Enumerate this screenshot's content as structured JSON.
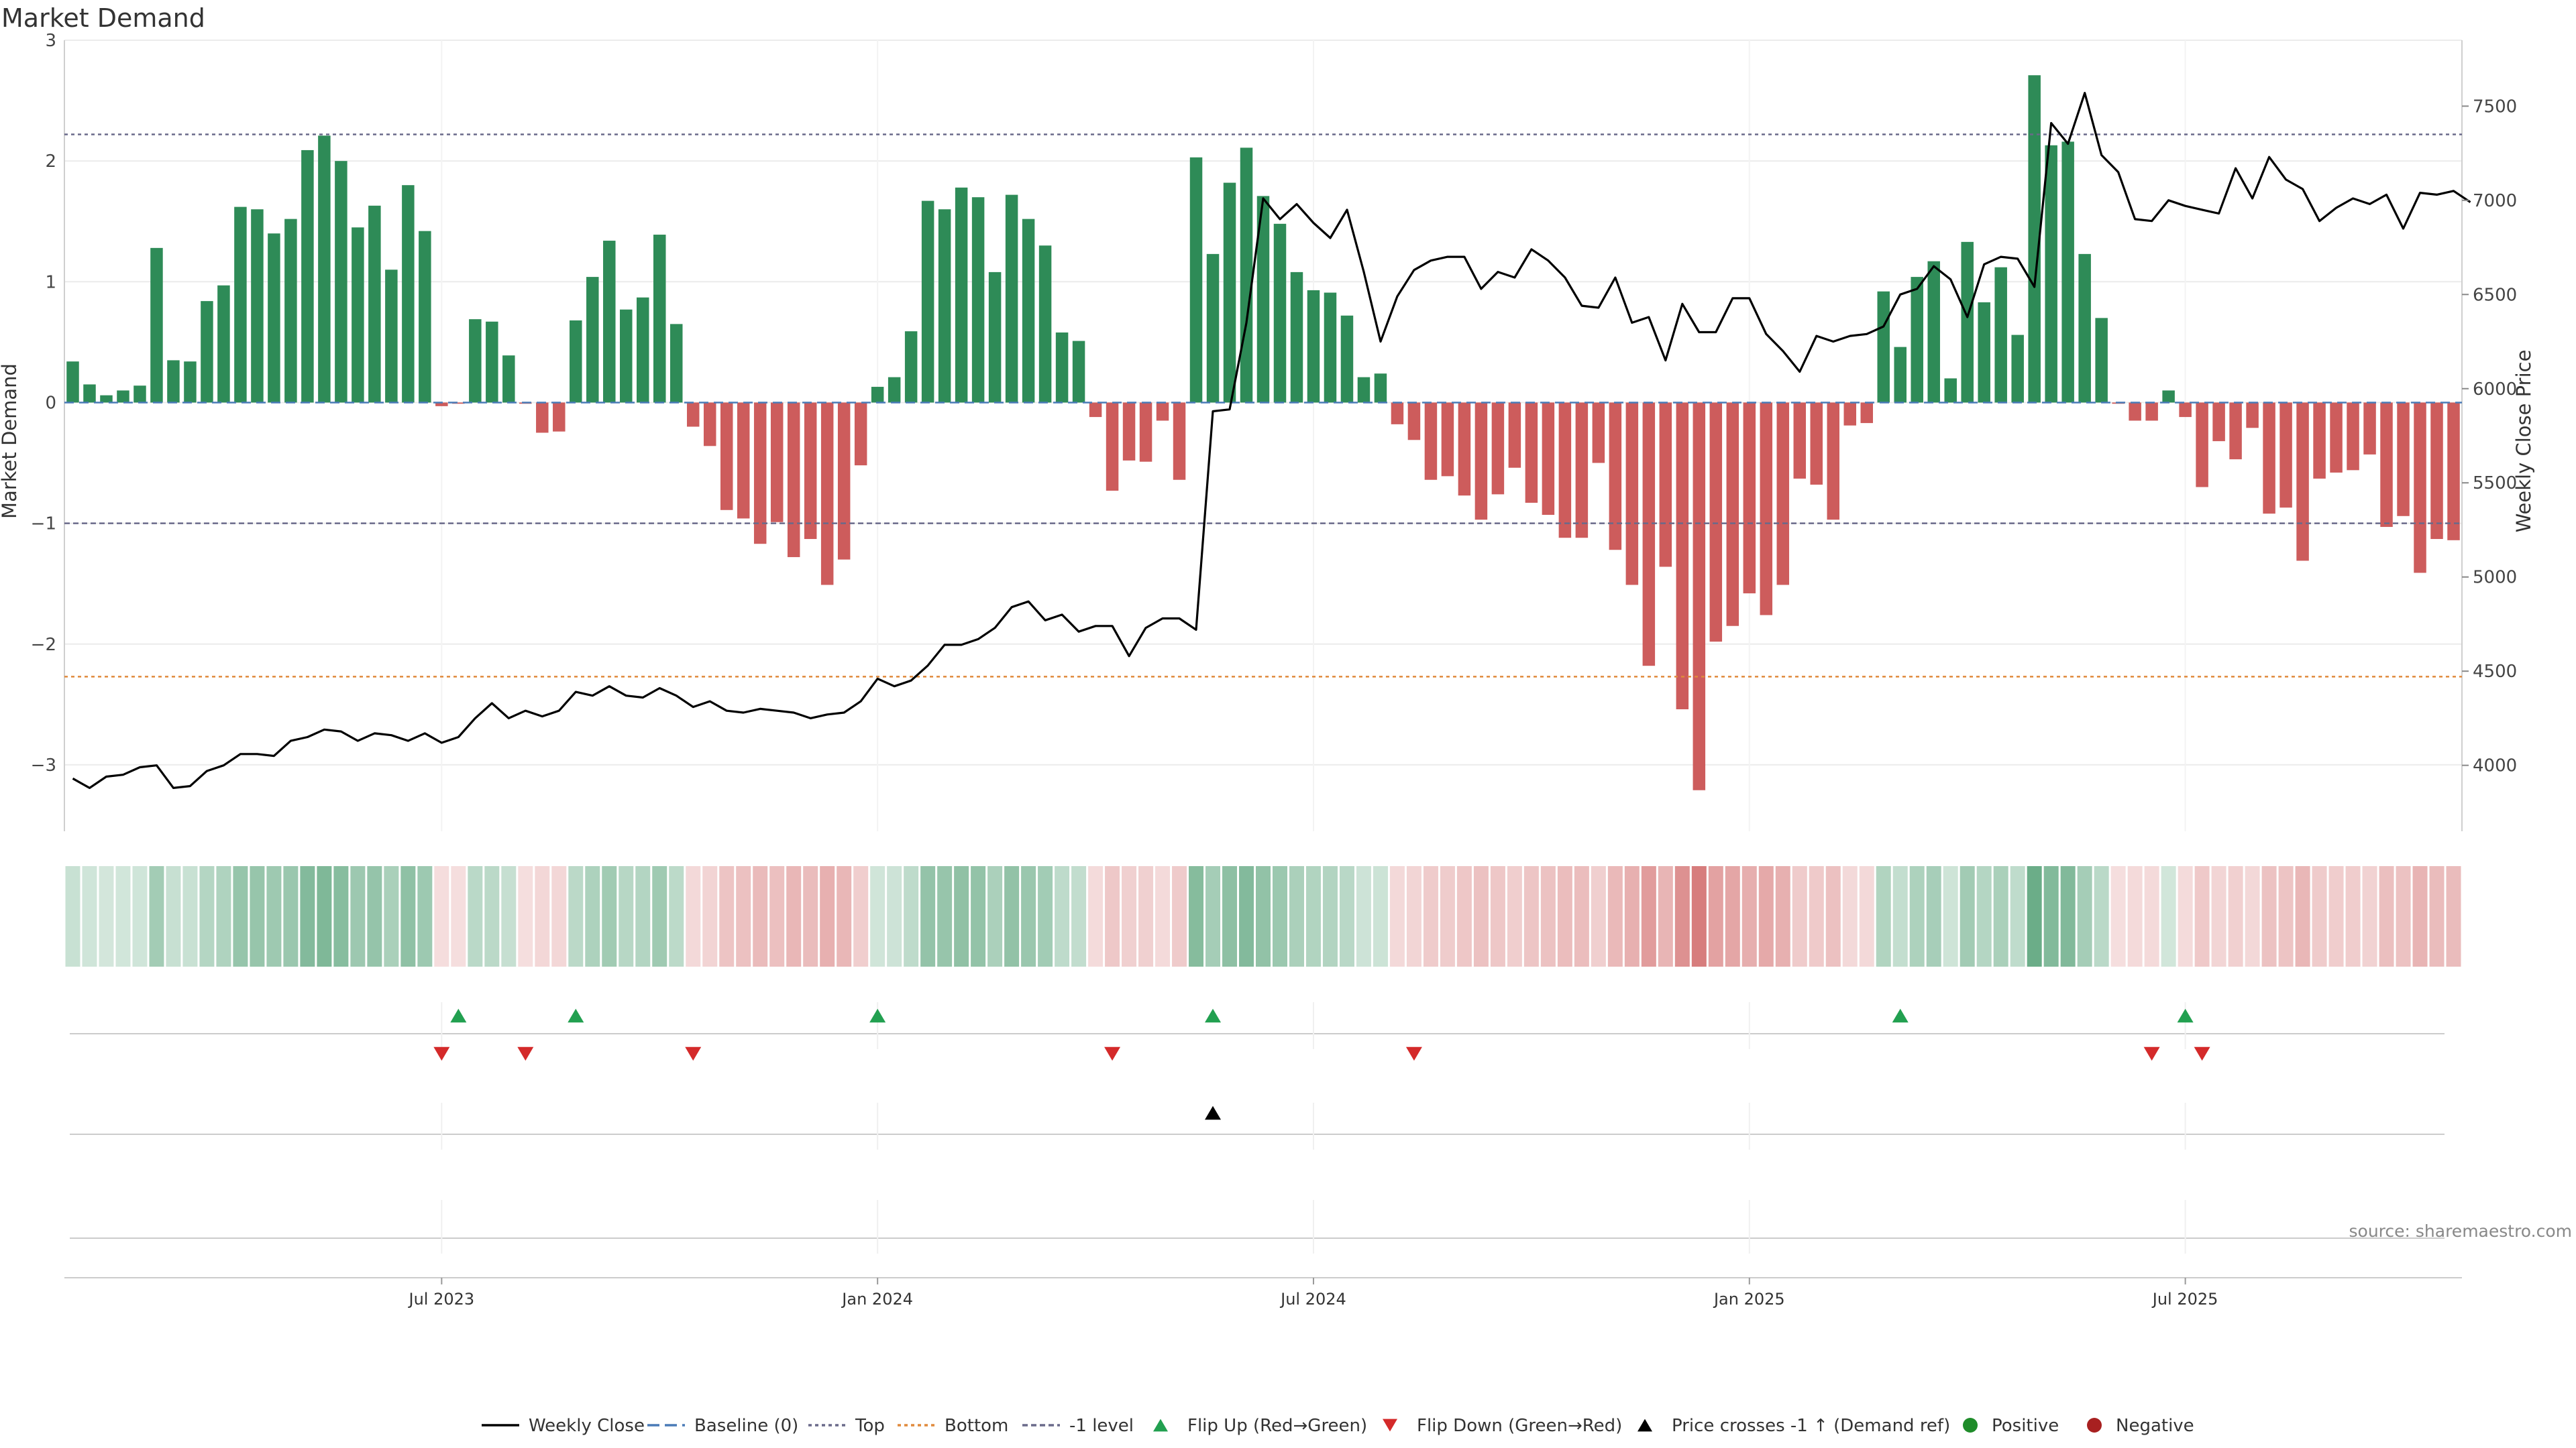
{
  "chart_data": {
    "type": "bar",
    "title": "Market Demand",
    "ylabel": "Market Demand",
    "y2label": "Weekly Close Price",
    "ylim": [
      -3.55,
      3.0
    ],
    "y2lim": [
      3650,
      7850
    ],
    "yticks": [
      3,
      2,
      1,
      0,
      -1,
      -2,
      -3
    ],
    "y2ticks": [
      7500,
      7000,
      6500,
      6000,
      5500,
      5000,
      4500,
      4000
    ],
    "x_tick_labels": [
      {
        "label": "Jul 2023",
        "week": 22
      },
      {
        "label": "Jan 2024",
        "week": 48
      },
      {
        "label": "Jul 2024",
        "week": 74
      },
      {
        "label": "Jan 2025",
        "week": 100
      },
      {
        "label": "Jul 2025",
        "week": 126
      }
    ],
    "reference_lines": {
      "top": 2.22,
      "bottom": -2.27,
      "minus_one": -1.0,
      "baseline": 0
    },
    "series": [
      {
        "name": "Market Demand",
        "kind": "bar",
        "values": [
          0.34,
          0.15,
          0.06,
          0.1,
          0.14,
          1.28,
          0.35,
          0.34,
          0.84,
          0.97,
          1.62,
          1.6,
          1.4,
          1.52,
          2.09,
          2.21,
          2.0,
          1.45,
          1.63,
          1.1,
          1.8,
          1.42,
          -0.03,
          -0.01,
          0.69,
          0.67,
          0.39,
          -0.01,
          -0.25,
          -0.24,
          0.68,
          1.04,
          1.34,
          0.77,
          0.87,
          1.39,
          0.65,
          -0.2,
          -0.36,
          -0.89,
          -0.96,
          -1.17,
          -0.99,
          -1.28,
          -1.13,
          -1.51,
          -1.3,
          -0.52,
          0.13,
          0.21,
          0.59,
          1.67,
          1.6,
          1.78,
          1.7,
          1.08,
          1.72,
          1.52,
          1.3,
          0.58,
          0.51,
          -0.12,
          -0.73,
          -0.48,
          -0.49,
          -0.15,
          -0.64,
          2.03,
          1.23,
          1.82,
          2.11,
          1.71,
          1.48,
          1.08,
          0.93,
          0.91,
          0.72,
          0.21,
          0.24,
          -0.18,
          -0.31,
          -0.64,
          -0.61,
          -0.77,
          -0.97,
          -0.76,
          -0.54,
          -0.83,
          -0.93,
          -1.12,
          -1.12,
          -0.5,
          -1.22,
          -1.51,
          -2.18,
          -1.36,
          -2.54,
          -3.21,
          -1.98,
          -1.85,
          -1.58,
          -1.76,
          -1.51,
          -0.63,
          -0.68,
          -0.97,
          -0.19,
          -0.17,
          0.92,
          0.46,
          1.04,
          1.17,
          0.2,
          1.33,
          0.83,
          1.12,
          0.56,
          2.71,
          2.13,
          2.16,
          1.23,
          0.7,
          -0.01,
          -0.15,
          -0.15,
          0.1,
          -0.12,
          -0.7,
          -0.32,
          -0.47,
          -0.21,
          -0.92,
          -0.87,
          -1.31,
          -0.63,
          -0.58,
          -0.56,
          -0.43,
          -1.03,
          -0.94,
          -1.41,
          -1.13,
          -1.14
        ]
      },
      {
        "name": "Weekly Close",
        "kind": "line",
        "axis": "right",
        "values": [
          3930,
          3880,
          3940,
          3950,
          3990,
          4000,
          3880,
          3890,
          3970,
          4000,
          4060,
          4060,
          4050,
          4130,
          4150,
          4190,
          4180,
          4130,
          4170,
          4160,
          4130,
          4170,
          4120,
          4150,
          4250,
          4330,
          4250,
          4290,
          4260,
          4290,
          4390,
          4370,
          4420,
          4370,
          4360,
          4410,
          4370,
          4310,
          4340,
          4290,
          4280,
          4300,
          4290,
          4280,
          4250,
          4270,
          4280,
          4340,
          4460,
          4420,
          4450,
          4530,
          4640,
          4640,
          4670,
          4730,
          4840,
          4870,
          4770,
          4800,
          4710,
          4740,
          4740,
          4580,
          4730,
          4780,
          4780,
          4720,
          5880,
          5890,
          6350,
          7010,
          6900,
          6980,
          6880,
          6800,
          6950,
          6620,
          6250,
          6490,
          6630,
          6680,
          6700,
          6700,
          6530,
          6620,
          6590,
          6740,
          6680,
          6590,
          6440,
          6430,
          6590,
          6350,
          6380,
          6150,
          6450,
          6300,
          6300,
          6480,
          6480,
          6290,
          6200,
          6090,
          6280,
          6250,
          6280,
          6290,
          6330,
          6500,
          6530,
          6650,
          6580,
          6380,
          6660,
          6700,
          6690,
          6540,
          7410,
          7300,
          7570,
          7240,
          7150,
          6900,
          6890,
          7000,
          6970,
          6950,
          6930,
          7170,
          7010,
          7230,
          7110,
          7060,
          6890,
          6960,
          7010,
          6980,
          7030,
          6850,
          7040,
          7030,
          7050,
          6990
        ]
      },
      {
        "name": "Flip Up (Red→Green)",
        "kind": "marker",
        "weeks": [
          23,
          30,
          48,
          68,
          109,
          126
        ]
      },
      {
        "name": "Flip Down (Green→Red)",
        "kind": "marker",
        "weeks": [
          22,
          27,
          37,
          62,
          80,
          124,
          127
        ]
      },
      {
        "name": "Price crosses -1 ↑ (Demand ref)",
        "kind": "marker",
        "weeks": [
          68
        ]
      }
    ],
    "legend": {
      "position": "bottom-center",
      "entries": [
        "Weekly Close",
        "Baseline (0)",
        "Top",
        "Bottom",
        "-1 level",
        "Flip Up (Red→Green)",
        "Flip Down (Green→Red)",
        "Price crosses -1 ↑ (Demand ref)",
        "Positive",
        "Negative"
      ]
    },
    "source": "source: sharemaestro.com"
  },
  "colors": {
    "positive": "#2e8b57",
    "negative": "#cd5c5c",
    "price_line": "#000000",
    "reference_line": "#6a6a8a",
    "bottom_line": "#e08a3c",
    "baseline": "#4a7bb7",
    "flip_up": "#22a050",
    "flip_down": "#d42a2a",
    "positive_dot": "#1f8c2a",
    "negative_dot": "#a82020"
  }
}
